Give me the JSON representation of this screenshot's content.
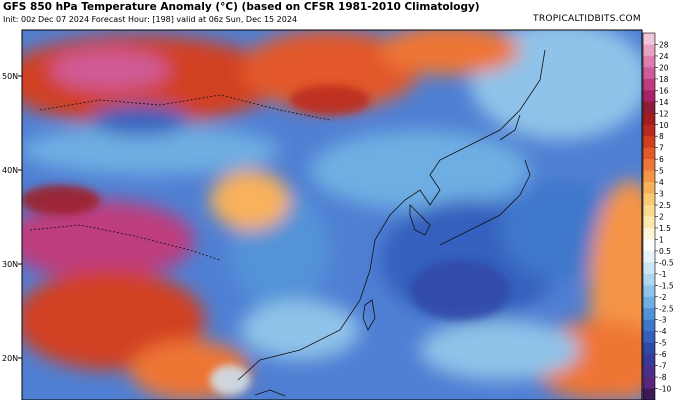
{
  "header": {
    "title": "GFS 850 hPa Temperature Anomaly (°C) (based on CFSR 1981-2010 Climatology)",
    "subtitle": "Init: 00z Dec 07 2024   Forecast Hour: [198]   valid at 06z Sun, Dec 15 2024",
    "site": "TROPICALTIDBITS.COM"
  },
  "map": {
    "latitude_labels": [
      "50N",
      "40N",
      "30N",
      "20N"
    ]
  },
  "colorbar": {
    "labels": [
      "28",
      "24",
      "20",
      "18",
      "16",
      "14",
      "12",
      "10",
      "8",
      "7",
      "6",
      "5",
      "4",
      "3",
      "2.5",
      "2",
      "1.5",
      "1",
      "0.5",
      "-0.5",
      "-1",
      "-1.5",
      "-2",
      "-2.5",
      "-3",
      "-4",
      "-5",
      "-6",
      "-7",
      "-8",
      "-10"
    ],
    "colors": [
      "#f2c6d8",
      "#e9a1c4",
      "#dd7db0",
      "#cf5b98",
      "#bd3d7e",
      "#a9236a",
      "#8e1d3c",
      "#a11d22",
      "#bb2a1e",
      "#d23f20",
      "#e2582b",
      "#ee7636",
      "#f59446",
      "#f8b15b",
      "#fbc873",
      "#fcdb90",
      "#fde9b0",
      "#fef4d6",
      "#ffffff",
      "#e6f3fb",
      "#cde6f6",
      "#b0d6f0",
      "#8fc3e9",
      "#6eaee2",
      "#5293d8",
      "#3f78cb",
      "#3660bd",
      "#3048a8",
      "#3a3a98",
      "#4a2f89",
      "#5a267c",
      "#3c1a5a"
    ]
  }
}
